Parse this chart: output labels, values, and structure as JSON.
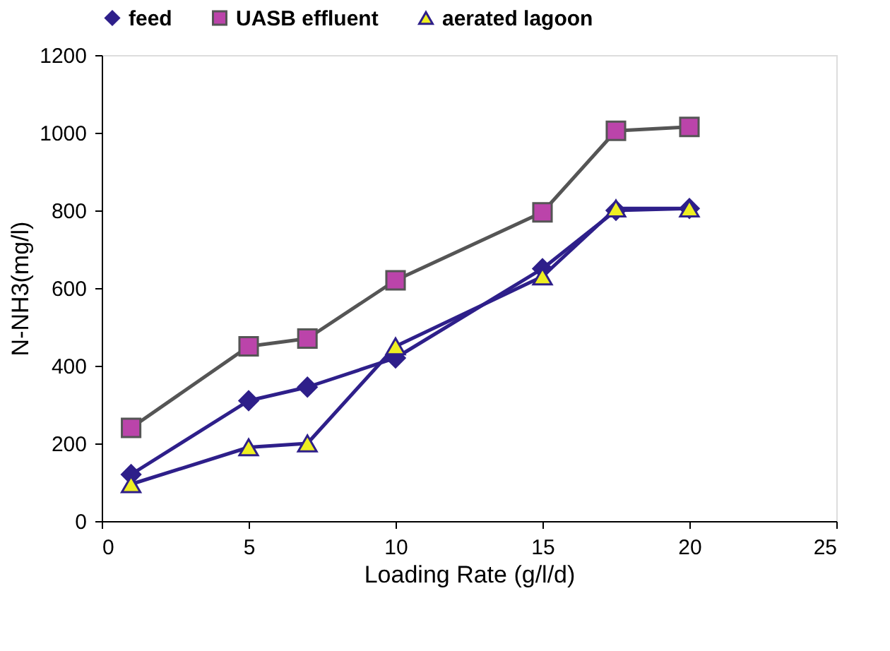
{
  "chart_data": {
    "type": "line",
    "xlabel": "Loading Rate (g/l/d)",
    "ylabel": "N-NH3(mg/l)",
    "x": [
      1,
      5,
      7,
      10,
      15,
      17.5,
      20
    ],
    "series": [
      {
        "name": "feed",
        "color": "#2e1f8a",
        "marker": "diamond",
        "values": [
          120,
          310,
          345,
          420,
          650,
          800,
          805
        ]
      },
      {
        "name": "UASB effluent",
        "color": "#555555",
        "marker": "square",
        "values": [
          240,
          450,
          470,
          620,
          795,
          1005,
          1015
        ]
      },
      {
        "name": "aerated lagoon",
        "color": "#2e1f8a",
        "marker": "triangle",
        "values": [
          95,
          190,
          200,
          450,
          630,
          805,
          805
        ]
      }
    ],
    "xlim": [
      0,
      25
    ],
    "xticks": [
      0,
      5,
      10,
      15,
      20,
      25
    ],
    "ylim": [
      0,
      1200
    ],
    "yticks": [
      0,
      200,
      400,
      600,
      800,
      1000,
      1200
    ],
    "grid": false,
    "legend": "top",
    "line_style": "solid"
  }
}
